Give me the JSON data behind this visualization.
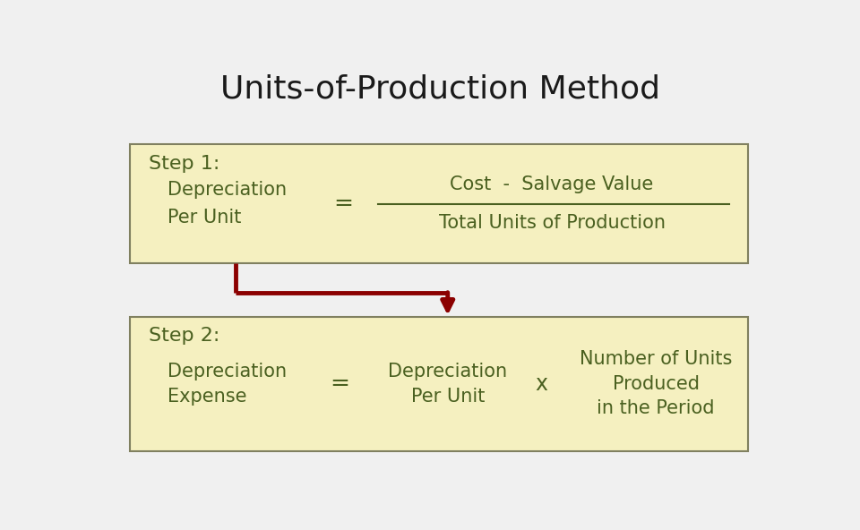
{
  "title": "Units-of-Production Method",
  "title_fontsize": 26,
  "title_color": "#1a1a1a",
  "bg_color": "#f0f0f0",
  "box_fill_color": "#f5f0c0",
  "box_edge_color": "#808060",
  "text_color": "#4a6020",
  "arrow_color": "#8b0000",
  "step1_label": "Step 1:",
  "step1_left_line1": "Depreciation",
  "step1_left_line2": "Per Unit",
  "step1_equals": "=",
  "step1_numerator": "Cost  -  Salvage Value",
  "step1_denominator": "Total Units of Production",
  "step2_label": "Step 2:",
  "step2_left_line1": "Depreciation",
  "step2_left_line2": "Expense",
  "step2_equals": "=",
  "step2_mid_line1": "Depreciation",
  "step2_mid_line2": "Per Unit",
  "step2_times": "x",
  "step2_right_line1": "Number of Units",
  "step2_right_line2": "Produced",
  "step2_right_line3": "in the Period",
  "text_fontsize": 15
}
